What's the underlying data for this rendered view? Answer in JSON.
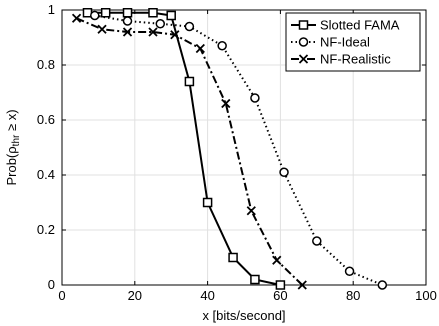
{
  "chart_data": {
    "type": "line",
    "xlabel": "x [bits/second]",
    "ylabel": {
      "prefix": "Prob(",
      "rho": "ρ",
      "sub": "thr",
      "suffix": " ≥ x)"
    },
    "xlim": [
      0,
      100
    ],
    "ylim": [
      0,
      1
    ],
    "xticks": [
      "0",
      "20",
      "40",
      "60",
      "80",
      "100"
    ],
    "yticks": [
      "0",
      "0.2",
      "0.4",
      "0.6",
      "0.8",
      "1"
    ],
    "grid": true,
    "legend_position": "top-right",
    "series": [
      {
        "name": "Slotted FAMA",
        "marker": "square",
        "line": "solid",
        "x": [
          7,
          12,
          18,
          25,
          30,
          35,
          40,
          47,
          53,
          60
        ],
        "y": [
          0.99,
          0.99,
          0.99,
          0.99,
          0.98,
          0.74,
          0.3,
          0.1,
          0.02,
          0.0
        ]
      },
      {
        "name": "NF-Ideal",
        "marker": "circle",
        "line": "dotted",
        "x": [
          9,
          18,
          27,
          35,
          44,
          53,
          61,
          70,
          79,
          88
        ],
        "y": [
          0.98,
          0.96,
          0.95,
          0.94,
          0.87,
          0.68,
          0.41,
          0.16,
          0.05,
          0.0
        ]
      },
      {
        "name": "NF-Realistic",
        "marker": "x",
        "line": "dashdot",
        "x": [
          4,
          11,
          18,
          25,
          31,
          38,
          45,
          52,
          59,
          66
        ],
        "y": [
          0.97,
          0.93,
          0.92,
          0.92,
          0.91,
          0.86,
          0.66,
          0.27,
          0.09,
          0.0
        ]
      }
    ]
  }
}
